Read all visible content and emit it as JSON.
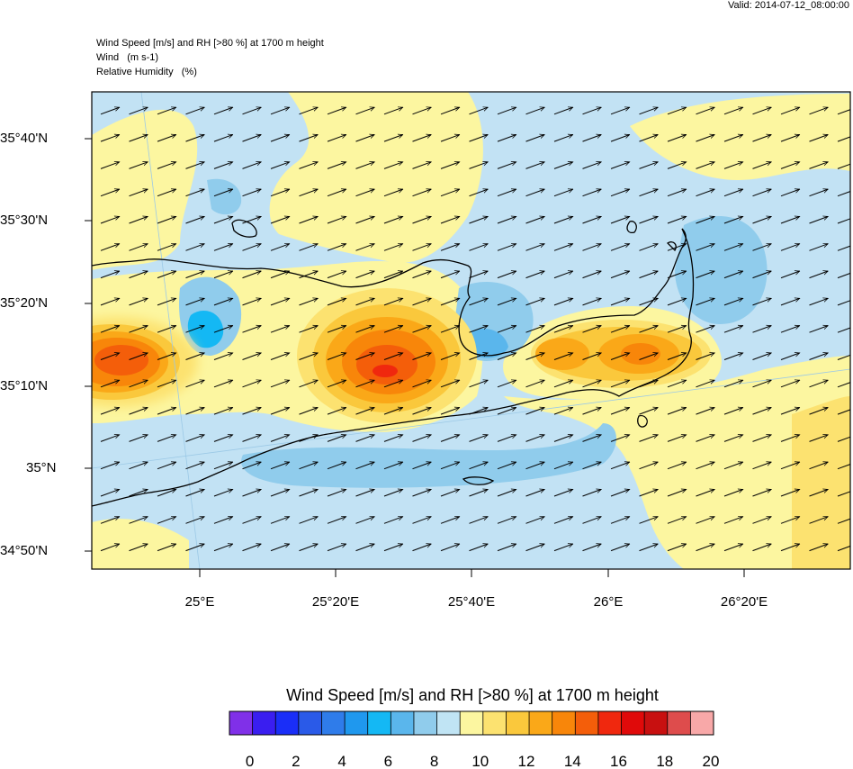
{
  "valid_time": "Valid: 2014-07-12_08:00:00",
  "header": {
    "line1": "Wind Speed [m/s] and RH [>80 %] at 1700 m height",
    "line2": "Wind   (m s-1)",
    "line3": "Relative Humidity   (%)"
  },
  "map": {
    "lat_labels": [
      "35°40'N",
      "35°30'N",
      "35°20'N",
      "35°10'N",
      "35°N",
      "34°50'N"
    ],
    "lon_labels": [
      "25°E",
      "25°20'E",
      "25°40'E",
      "26°E",
      "26°20'E"
    ],
    "wind_direction_deg": 70,
    "speed_field": {
      "background_ms": 9.5,
      "maxima": [
        {
          "place": "west sea",
          "speed_ms": 16
        },
        {
          "place": "central",
          "speed_ms": 18
        },
        {
          "place": "east gulf",
          "speed_ms": 15
        }
      ],
      "minima": [
        {
          "place": "west bay",
          "speed_ms": 6
        },
        {
          "place": "east gulf coast",
          "speed_ms": 6
        }
      ]
    }
  },
  "colorbar": {
    "title": "Wind Speed [m/s] and RH [>80 %] at 1700 m height",
    "colors": [
      "#8030e8",
      "#3a1ef0",
      "#1a2ef8",
      "#2a5ae8",
      "#2f7cea",
      "#1f98ee",
      "#14b8f4",
      "#5ab6ec",
      "#90ccec",
      "#c0e4f4",
      "#fcf6a0",
      "#fce270",
      "#fac83c",
      "#faa818",
      "#f8860a",
      "#f45e0a",
      "#f0280e",
      "#e00a0a",
      "#c81010",
      "#de4c4c",
      "#f8a8a8"
    ],
    "labels": [
      "0",
      "2",
      "4",
      "6",
      "8",
      "10",
      "12",
      "14",
      "16",
      "18",
      "20"
    ]
  }
}
